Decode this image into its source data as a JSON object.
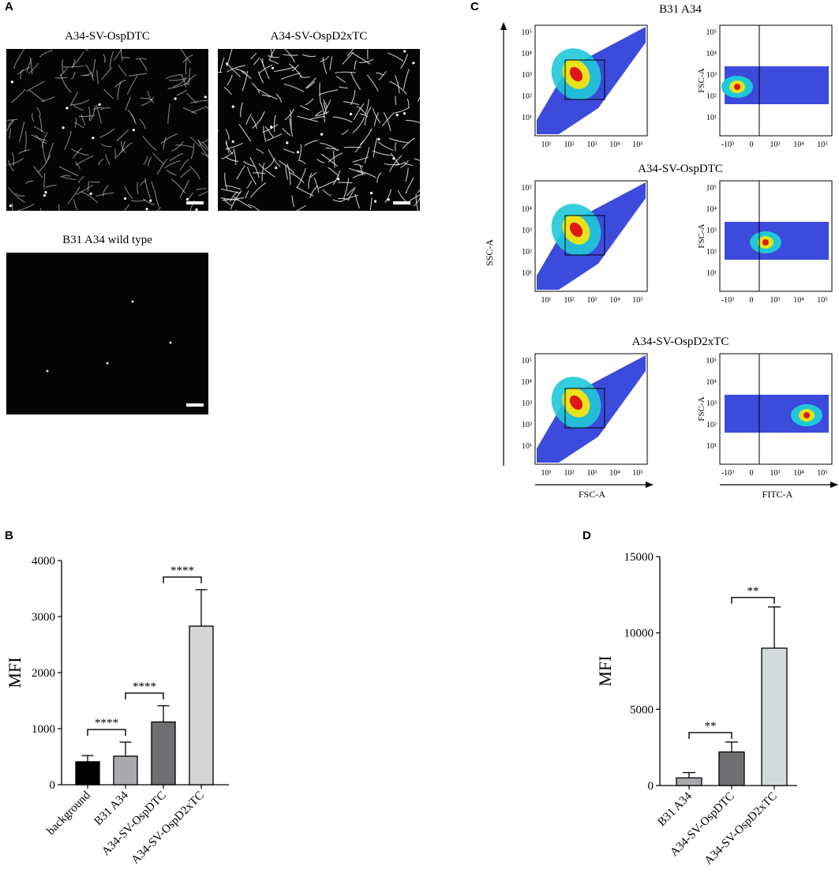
{
  "panels": {
    "a": "A",
    "b": "B",
    "c": "C",
    "d": "D"
  },
  "panel_a": {
    "images": [
      {
        "title": "A34-SV-OspDTC"
      },
      {
        "title": "A34-SV-OspD2xTC"
      },
      {
        "title": "B31 A34 wild type"
      }
    ]
  },
  "panel_c": {
    "rows": [
      {
        "title": "B31 A34"
      },
      {
        "title": "A34-SV-OspDTC"
      },
      {
        "title": "A34-SV-OspD2xTC"
      }
    ],
    "left_ticks_x": [
      "10¹",
      "10²",
      "10³",
      "10⁴",
      "10⁵"
    ],
    "right_ticks_x": [
      "-10³",
      "0",
      "10³",
      "10⁴",
      "10⁵"
    ],
    "ticks_y": [
      "10⁵",
      "10⁴",
      "10³",
      "10²",
      "10¹"
    ],
    "ssc_label": "SSC-A",
    "fsc_label": "FSC-A",
    "fsc_axis_label": "FSC-A",
    "fitc_axis_label": "FITC-A",
    "colors": {
      "low": "#1a2bd6",
      "mid": "#1fc9d8",
      "high": "#e8e21a",
      "peak": "#e01818"
    }
  },
  "chart_data": [
    {
      "type": "bar",
      "panel": "B",
      "categories": [
        "background",
        "B31 A34",
        "A34-SV-OspDTC",
        "A34-SV-OspD2xTC"
      ],
      "values": [
        410,
        510,
        1120,
        2830
      ],
      "errors": [
        110,
        250,
        290,
        650
      ],
      "colors": [
        "#000000",
        "#a9a9ae",
        "#6f6f72",
        "#d4d4d4"
      ],
      "ylabel": "MFI",
      "ylim": [
        0,
        4000
      ],
      "yticks": [
        "0",
        "1000",
        "2000",
        "3000",
        "4000"
      ],
      "significance": [
        {
          "from": 0,
          "to": 1,
          "label": "****"
        },
        {
          "from": 1,
          "to": 2,
          "label": "****"
        },
        {
          "from": 2,
          "to": 3,
          "label": "****"
        }
      ]
    },
    {
      "type": "bar",
      "panel": "D",
      "categories": [
        "B31 A34",
        "A34-SV-OspDTC",
        "A34-SV-OspD2xTC"
      ],
      "values": [
        500,
        2200,
        9000
      ],
      "errors": [
        350,
        650,
        2700
      ],
      "colors": [
        "#a9a9ae",
        "#6f6f72",
        "#d4d9dc"
      ],
      "ylabel": "MFI",
      "ylim": [
        0,
        15000
      ],
      "yticks": [
        "0",
        "5000",
        "10000",
        "15000"
      ],
      "significance": [
        {
          "from": 0,
          "to": 1,
          "label": "**"
        },
        {
          "from": 1,
          "to": 2,
          "label": "**"
        }
      ]
    }
  ]
}
